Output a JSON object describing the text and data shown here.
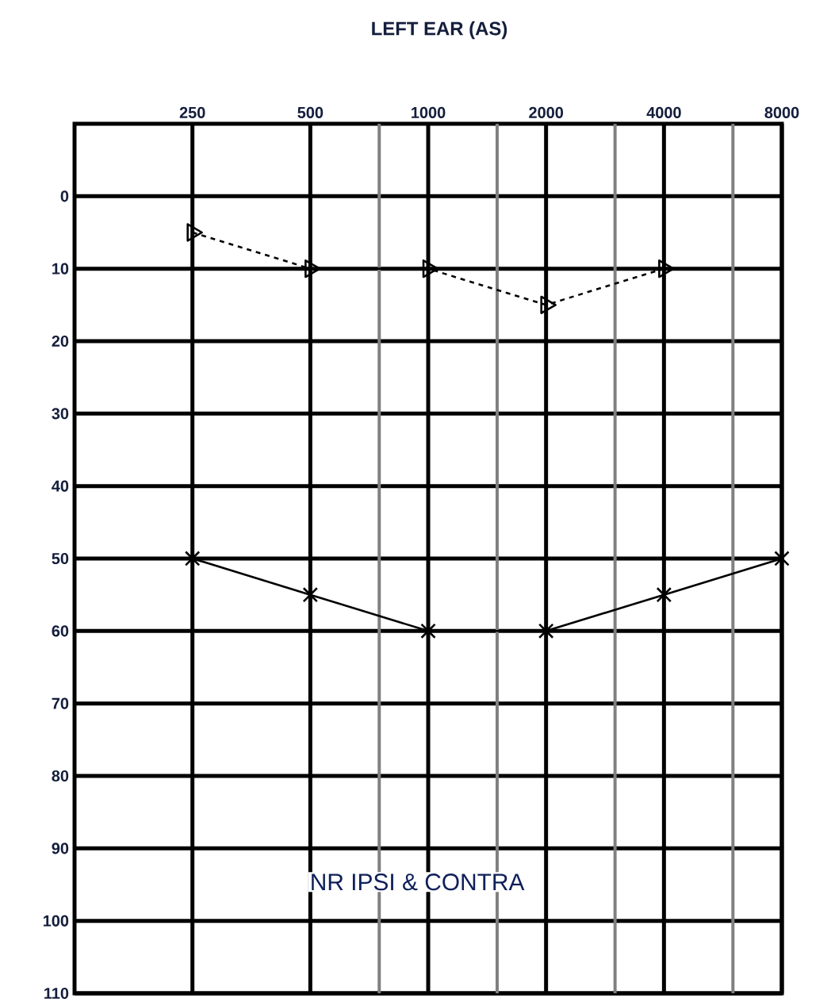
{
  "chart_data": {
    "type": "line",
    "title": "LEFT EAR (AS)",
    "log": "x",
    "xlim": [
      125,
      8000
    ],
    "xticks": [
      250,
      500,
      {
        "value": 750,
        "label": null
      },
      1000,
      {
        "value": 1500,
        "label": null
      },
      2000,
      {
        "value": 3000,
        "label": null
      },
      4000,
      {
        "value": 6000,
        "label": null
      },
      8000
    ],
    "ylim": [
      110,
      -10
    ],
    "yticks": [
      0,
      10,
      20,
      30,
      40,
      50,
      60,
      70,
      80,
      90,
      100,
      110
    ],
    "grid": true,
    "series": [
      {
        "color": "#000000",
        "marker": "triangle",
        "line_style": "dashed",
        "x": [
          250,
          500,
          1000,
          2000,
          4000
        ],
        "values": [
          5,
          10,
          10,
          15,
          10
        ]
      },
      {
        "color": "#000000",
        "marker": "cross",
        "line_style": "solid",
        "x": [
          250,
          500,
          1000,
          2000,
          4000,
          8000
        ],
        "values": [
          50,
          55,
          60,
          60,
          55,
          50
        ]
      }
    ],
    "annotations": [
      "NR IPSI & CONTRA"
    ]
  }
}
